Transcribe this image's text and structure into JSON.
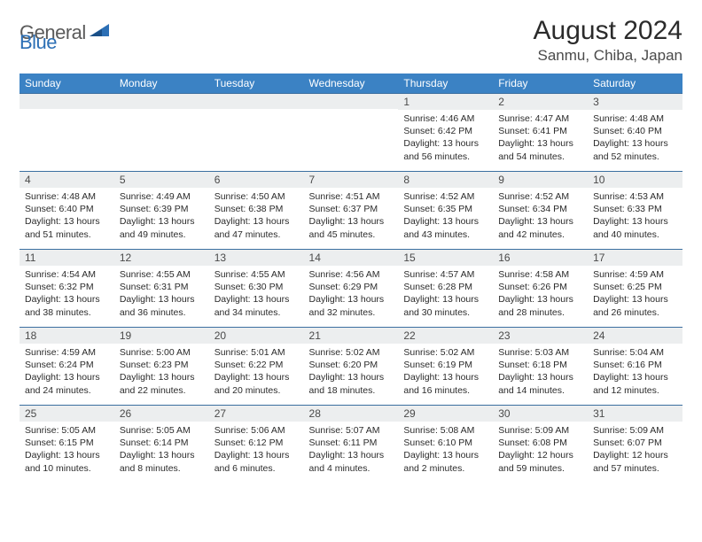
{
  "logo": {
    "text1": "General",
    "text2": "Blue"
  },
  "title": "August 2024",
  "location": "Sanmu, Chiba, Japan",
  "colors": {
    "header_bg": "#3b82c4",
    "header_text": "#ffffff",
    "daynum_bg": "#eceeef",
    "border": "#3b6fa0",
    "logo_gray": "#5a5a5a",
    "logo_blue": "#2c6fb5"
  },
  "days_of_week": [
    "Sunday",
    "Monday",
    "Tuesday",
    "Wednesday",
    "Thursday",
    "Friday",
    "Saturday"
  ],
  "weeks": [
    [
      null,
      null,
      null,
      null,
      {
        "num": "1",
        "sunrise": "4:46 AM",
        "sunset": "6:42 PM",
        "daylight": "13 hours and 56 minutes."
      },
      {
        "num": "2",
        "sunrise": "4:47 AM",
        "sunset": "6:41 PM",
        "daylight": "13 hours and 54 minutes."
      },
      {
        "num": "3",
        "sunrise": "4:48 AM",
        "sunset": "6:40 PM",
        "daylight": "13 hours and 52 minutes."
      }
    ],
    [
      {
        "num": "4",
        "sunrise": "4:48 AM",
        "sunset": "6:40 PM",
        "daylight": "13 hours and 51 minutes."
      },
      {
        "num": "5",
        "sunrise": "4:49 AM",
        "sunset": "6:39 PM",
        "daylight": "13 hours and 49 minutes."
      },
      {
        "num": "6",
        "sunrise": "4:50 AM",
        "sunset": "6:38 PM",
        "daylight": "13 hours and 47 minutes."
      },
      {
        "num": "7",
        "sunrise": "4:51 AM",
        "sunset": "6:37 PM",
        "daylight": "13 hours and 45 minutes."
      },
      {
        "num": "8",
        "sunrise": "4:52 AM",
        "sunset": "6:35 PM",
        "daylight": "13 hours and 43 minutes."
      },
      {
        "num": "9",
        "sunrise": "4:52 AM",
        "sunset": "6:34 PM",
        "daylight": "13 hours and 42 minutes."
      },
      {
        "num": "10",
        "sunrise": "4:53 AM",
        "sunset": "6:33 PM",
        "daylight": "13 hours and 40 minutes."
      }
    ],
    [
      {
        "num": "11",
        "sunrise": "4:54 AM",
        "sunset": "6:32 PM",
        "daylight": "13 hours and 38 minutes."
      },
      {
        "num": "12",
        "sunrise": "4:55 AM",
        "sunset": "6:31 PM",
        "daylight": "13 hours and 36 minutes."
      },
      {
        "num": "13",
        "sunrise": "4:55 AM",
        "sunset": "6:30 PM",
        "daylight": "13 hours and 34 minutes."
      },
      {
        "num": "14",
        "sunrise": "4:56 AM",
        "sunset": "6:29 PM",
        "daylight": "13 hours and 32 minutes."
      },
      {
        "num": "15",
        "sunrise": "4:57 AM",
        "sunset": "6:28 PM",
        "daylight": "13 hours and 30 minutes."
      },
      {
        "num": "16",
        "sunrise": "4:58 AM",
        "sunset": "6:26 PM",
        "daylight": "13 hours and 28 minutes."
      },
      {
        "num": "17",
        "sunrise": "4:59 AM",
        "sunset": "6:25 PM",
        "daylight": "13 hours and 26 minutes."
      }
    ],
    [
      {
        "num": "18",
        "sunrise": "4:59 AM",
        "sunset": "6:24 PM",
        "daylight": "13 hours and 24 minutes."
      },
      {
        "num": "19",
        "sunrise": "5:00 AM",
        "sunset": "6:23 PM",
        "daylight": "13 hours and 22 minutes."
      },
      {
        "num": "20",
        "sunrise": "5:01 AM",
        "sunset": "6:22 PM",
        "daylight": "13 hours and 20 minutes."
      },
      {
        "num": "21",
        "sunrise": "5:02 AM",
        "sunset": "6:20 PM",
        "daylight": "13 hours and 18 minutes."
      },
      {
        "num": "22",
        "sunrise": "5:02 AM",
        "sunset": "6:19 PM",
        "daylight": "13 hours and 16 minutes."
      },
      {
        "num": "23",
        "sunrise": "5:03 AM",
        "sunset": "6:18 PM",
        "daylight": "13 hours and 14 minutes."
      },
      {
        "num": "24",
        "sunrise": "5:04 AM",
        "sunset": "6:16 PM",
        "daylight": "13 hours and 12 minutes."
      }
    ],
    [
      {
        "num": "25",
        "sunrise": "5:05 AM",
        "sunset": "6:15 PM",
        "daylight": "13 hours and 10 minutes."
      },
      {
        "num": "26",
        "sunrise": "5:05 AM",
        "sunset": "6:14 PM",
        "daylight": "13 hours and 8 minutes."
      },
      {
        "num": "27",
        "sunrise": "5:06 AM",
        "sunset": "6:12 PM",
        "daylight": "13 hours and 6 minutes."
      },
      {
        "num": "28",
        "sunrise": "5:07 AM",
        "sunset": "6:11 PM",
        "daylight": "13 hours and 4 minutes."
      },
      {
        "num": "29",
        "sunrise": "5:08 AM",
        "sunset": "6:10 PM",
        "daylight": "13 hours and 2 minutes."
      },
      {
        "num": "30",
        "sunrise": "5:09 AM",
        "sunset": "6:08 PM",
        "daylight": "12 hours and 59 minutes."
      },
      {
        "num": "31",
        "sunrise": "5:09 AM",
        "sunset": "6:07 PM",
        "daylight": "12 hours and 57 minutes."
      }
    ]
  ],
  "labels": {
    "sunrise": "Sunrise:",
    "sunset": "Sunset:",
    "daylight": "Daylight:"
  }
}
